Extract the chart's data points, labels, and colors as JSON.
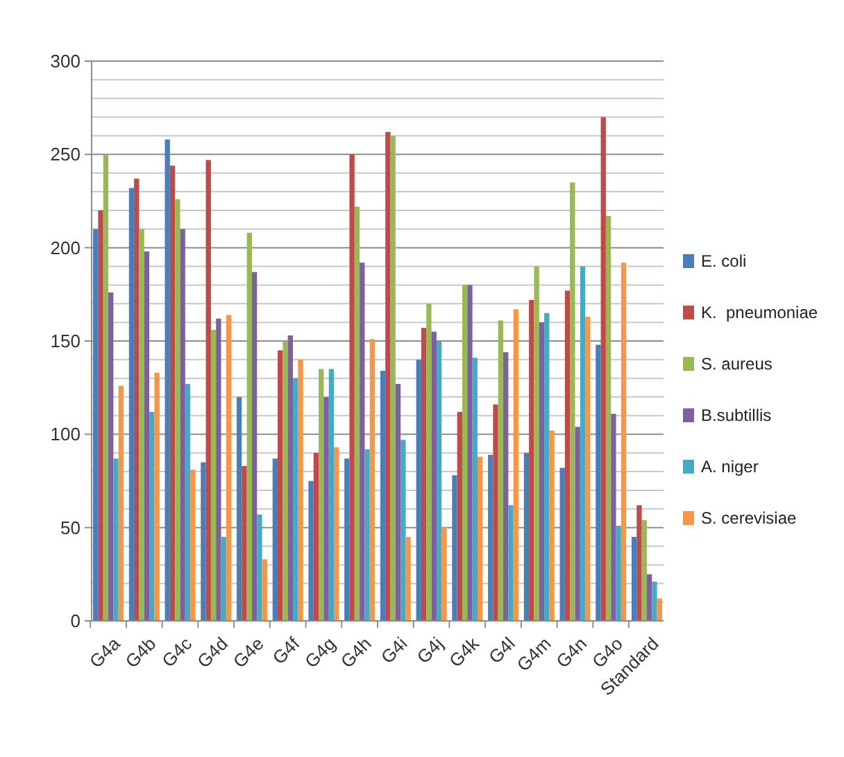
{
  "chart_data": {
    "type": "bar",
    "categories": [
      "G4a",
      "G4b",
      "G4c",
      "G4d",
      "G4e",
      "G4f",
      "G4g",
      "G4h",
      "G4i",
      "G4j",
      "G4k",
      "G4l",
      "G4m",
      "G4n",
      "G4o",
      "Standard"
    ],
    "series": [
      {
        "name": "E. coli",
        "color": "#4a7ebb",
        "values": [
          210,
          232,
          258,
          85,
          120,
          87,
          75,
          87,
          134,
          140,
          78,
          89,
          90,
          82,
          148,
          45
        ]
      },
      {
        "name": "K.  pneumoniae",
        "color": "#be4b48",
        "values": [
          220,
          237,
          244,
          247,
          83,
          145,
          90,
          250,
          262,
          157,
          112,
          116,
          172,
          177,
          270,
          62
        ]
      },
      {
        "name": "S. aureus",
        "color": "#98b954",
        "values": [
          250,
          210,
          226,
          156,
          208,
          150,
          135,
          222,
          260,
          170,
          180,
          161,
          190,
          235,
          217,
          54
        ]
      },
      {
        "name": "B.subtillis",
        "color": "#7d60a0",
        "values": [
          176,
          198,
          210,
          162,
          187,
          153,
          120,
          192,
          127,
          155,
          180,
          144,
          160,
          104,
          111,
          25
        ]
      },
      {
        "name": "A. niger",
        "color": "#46aac5",
        "values": [
          87,
          112,
          127,
          45,
          57,
          130,
          135,
          92,
          97,
          150,
          141,
          62,
          165,
          190,
          51,
          21
        ]
      },
      {
        "name": "S. cerevisiae",
        "color": "#f79646",
        "values": [
          126,
          133,
          81,
          164,
          33,
          140,
          93,
          151,
          45,
          50,
          88,
          167,
          102,
          163,
          192,
          12
        ]
      }
    ],
    "ylim": [
      0,
      300
    ],
    "yticks": [
      0,
      {
        "value": 10,
        "label": null
      },
      {
        "value": 20,
        "label": null
      },
      {
        "value": 30,
        "label": null
      },
      {
        "value": 40,
        "label": null
      },
      50,
      {
        "value": 60,
        "label": null
      },
      {
        "value": 70,
        "label": null
      },
      {
        "value": 80,
        "label": null
      },
      {
        "value": 90,
        "label": null
      },
      100,
      {
        "value": 110,
        "label": null
      },
      {
        "value": 120,
        "label": null
      },
      {
        "value": 130,
        "label": null
      },
      {
        "value": 140,
        "label": null
      },
      150,
      {
        "value": 160,
        "label": null
      },
      {
        "value": 170,
        "label": null
      },
      {
        "value": 180,
        "label": null
      },
      {
        "value": 190,
        "label": null
      },
      200,
      {
        "value": 210,
        "label": null
      },
      {
        "value": 220,
        "label": null
      },
      {
        "value": 230,
        "label": null
      },
      {
        "value": 240,
        "label": null
      },
      250,
      {
        "value": 260,
        "label": null
      },
      {
        "value": 270,
        "label": null
      },
      {
        "value": 280,
        "label": null
      },
      {
        "value": 290,
        "label": null
      },
      300
    ],
    "grid": true,
    "legend": "right"
  }
}
